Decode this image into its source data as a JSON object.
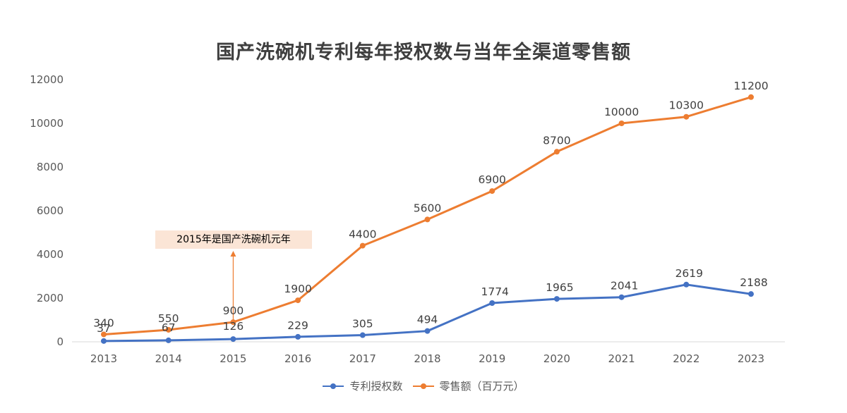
{
  "chart_data": {
    "type": "line",
    "title": "国产洗碗机专利每年授权数与当年全渠道零售额",
    "categories": [
      "2013",
      "2014",
      "2015",
      "2016",
      "2017",
      "2018",
      "2019",
      "2020",
      "2021",
      "2022",
      "2023"
    ],
    "ylim": [
      0,
      12000
    ],
    "yticks": [
      0,
      2000,
      4000,
      6000,
      8000,
      10000,
      12000
    ],
    "grid": false,
    "legend_position": "bottom",
    "series": [
      {
        "name": "专利授权数",
        "color": "#4472c4",
        "values": [
          37,
          67,
          126,
          229,
          305,
          494,
          1774,
          1965,
          2041,
          2619,
          2188
        ]
      },
      {
        "name": "零售额（百万元）",
        "color": "#ed7d31",
        "values": [
          340,
          550,
          900,
          1900,
          4400,
          5600,
          6900,
          8700,
          10000,
          10300,
          11200
        ]
      }
    ],
    "annotation": {
      "text": "2015年是国产洗碗机元年",
      "category": "2015",
      "color": "#ed7d31"
    }
  }
}
